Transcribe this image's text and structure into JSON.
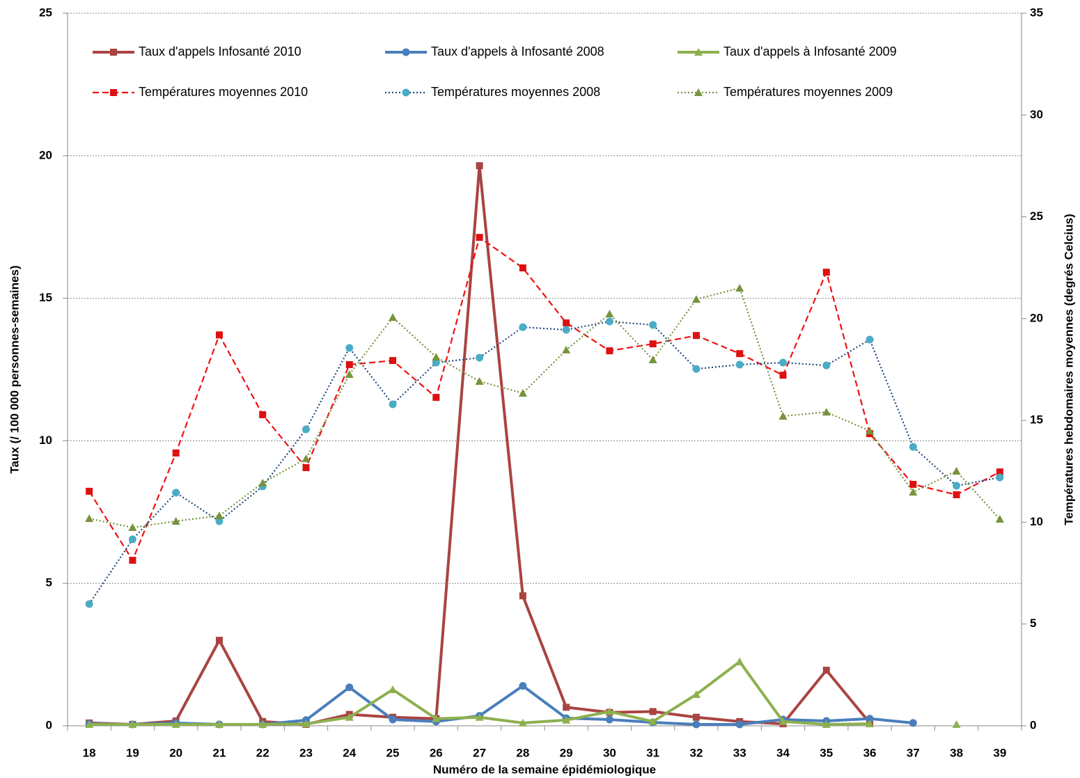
{
  "chart_data": {
    "type": "line",
    "x_label": "Numéro de la semaine épidémiologique",
    "y_label": "Taux (/ 100 000 personnes-semaines)",
    "y2_label": "Températures hebdomaires moyennes (degrés Celcius)",
    "categories": [
      "18",
      "19",
      "20",
      "21",
      "22",
      "23",
      "24",
      "25",
      "26",
      "27",
      "28",
      "29",
      "30",
      "31",
      "32",
      "33",
      "34",
      "35",
      "36",
      "37",
      "38",
      "39"
    ],
    "ylim": [
      0,
      25
    ],
    "yticks": [
      0,
      5,
      10,
      15,
      20,
      25
    ],
    "y2lim": [
      0,
      35
    ],
    "y2ticks": [
      0,
      5,
      10,
      15,
      20,
      25,
      30,
      35
    ],
    "grid": true,
    "series": [
      {
        "name": "Taux d'appels Infosanté 2010",
        "color": "#a94442",
        "marker_color": "#a94442",
        "style": "solid",
        "marker": "square",
        "values": [
          0.1,
          0.05,
          0.17,
          3.0,
          0.15,
          0.05,
          0.4,
          0.3,
          0.25,
          19.65,
          4.56,
          0.65,
          0.47,
          0.5,
          0.3,
          0.15,
          0.07,
          1.95,
          0.1,
          null,
          null,
          null
        ]
      },
      {
        "name": "Taux d'appels à Infosanté 2008",
        "color": "#4a7ebb",
        "marker_color": "#4a7ebb",
        "style": "solid",
        "marker": "circle",
        "values": [
          0.07,
          0.05,
          0.1,
          0.05,
          0.05,
          0.2,
          1.35,
          0.22,
          0.15,
          0.35,
          1.4,
          0.27,
          0.22,
          0.12,
          0.05,
          0.05,
          0.22,
          0.17,
          0.25,
          0.1,
          null,
          null
        ]
      },
      {
        "name": "Taux d'appels à Infosanté 2009",
        "color": "#8db04f",
        "marker_color": "#8db04f",
        "style": "solid",
        "marker": "triangle",
        "values": [
          0.05,
          0.05,
          0.05,
          0.05,
          0.05,
          0.07,
          0.3,
          1.27,
          0.25,
          0.3,
          0.1,
          0.2,
          0.5,
          0.15,
          1.1,
          2.25,
          0.15,
          0.05,
          0.07,
          null,
          0.05,
          null
        ]
      },
      {
        "name": "Températures  moyennes 2010",
        "color": "#ee1111",
        "marker_color": "#dd1111",
        "style": "dashed",
        "marker": "square",
        "axis": "y2",
        "values": [
          11.52,
          8.13,
          13.4,
          19.2,
          15.28,
          12.68,
          17.74,
          17.94,
          16.13,
          23.99,
          22.49,
          19.79,
          18.42,
          18.76,
          19.17,
          18.28,
          17.22,
          22.28,
          14.35,
          11.86,
          11.35,
          12.47
        ]
      },
      {
        "name": "Températures  moyennes 2008",
        "color": "#1f497d",
        "marker_color": "#4bacc6",
        "style": "dotted",
        "marker": "circle",
        "axis": "y2",
        "values": [
          5.98,
          9.16,
          11.45,
          10.05,
          11.76,
          14.56,
          18.56,
          15.79,
          17.84,
          18.08,
          19.58,
          19.45,
          19.86,
          19.69,
          17.53,
          17.74,
          17.84,
          17.7,
          18.97,
          13.7,
          11.79,
          12.2
        ]
      },
      {
        "name": "Températures  moyennes 2009",
        "color": "#77933c",
        "marker_color": "#77933c",
        "style": "dotted",
        "marker": "triangle",
        "axis": "y2",
        "values": [
          10.18,
          9.74,
          10.05,
          10.32,
          11.93,
          13.12,
          17.26,
          20.06,
          18.11,
          16.92,
          16.34,
          18.46,
          20.23,
          17.98,
          20.95,
          21.5,
          15.21,
          15.41,
          14.49,
          11.48,
          12.51,
          10.15
        ]
      }
    ]
  }
}
